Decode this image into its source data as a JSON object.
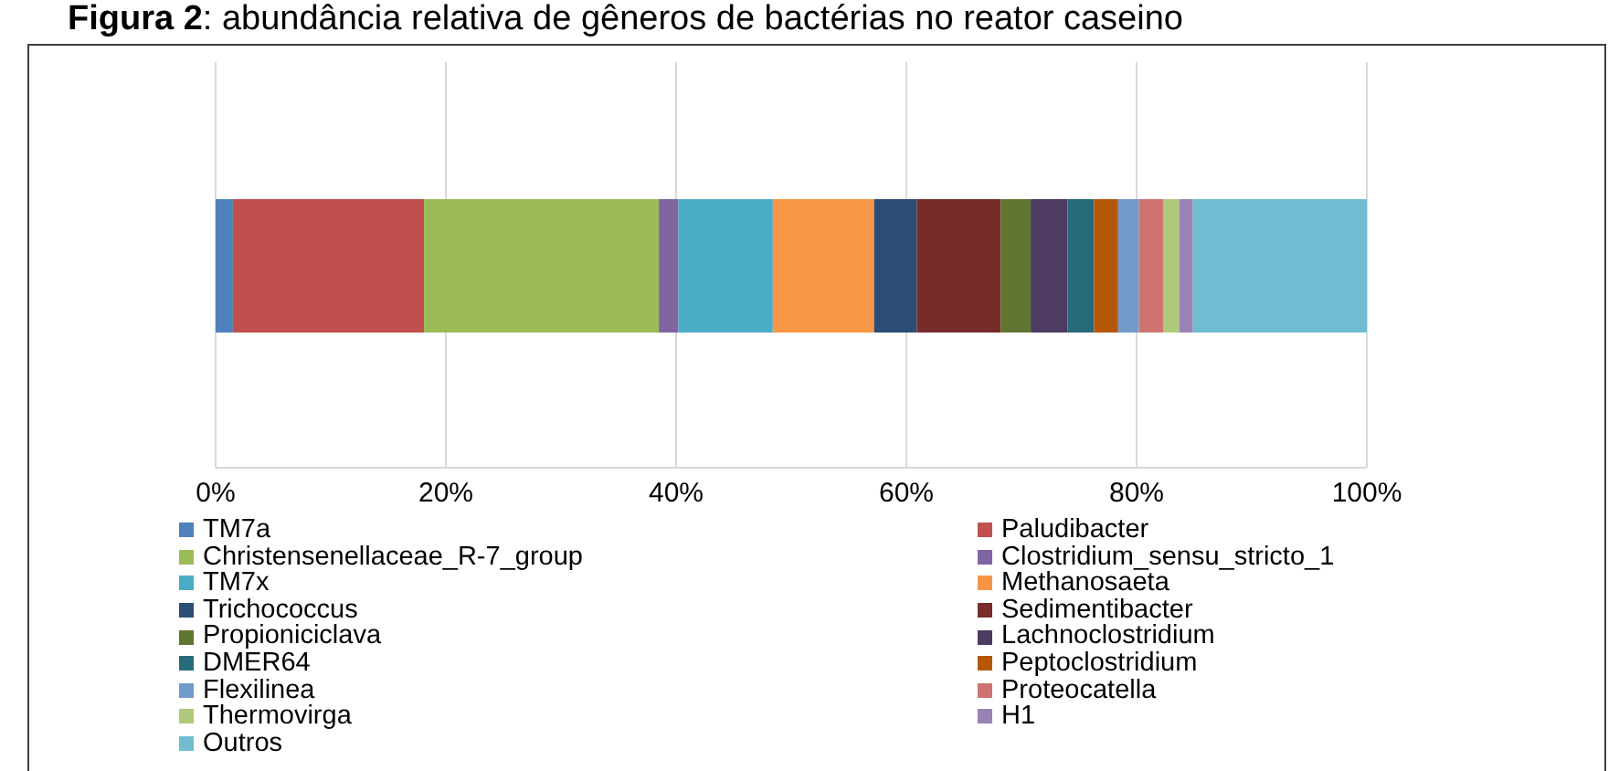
{
  "chart_data": {
    "type": "bar",
    "title": "Figura 2: abundância relativa de gêneros de bactérias no reator caseino",
    "orientation": "horizontal",
    "stacked": true,
    "categories": [
      null
    ],
    "series": [
      {
        "name": "TM7a",
        "color": "#4f81bd",
        "values": [
          1.5
        ]
      },
      {
        "name": "Paludibacter",
        "color": "#c0504d",
        "values": [
          16.6
        ]
      },
      {
        "name": "Christensenellaceae_R-7_group",
        "color": "#9bbb59",
        "values": [
          20.4
        ]
      },
      {
        "name": "Clostridium_sensu_stricto_1",
        "color": "#8064a2",
        "values": [
          1.7
        ]
      },
      {
        "name": "TM7x",
        "color": "#4bacc6",
        "values": [
          8.2
        ]
      },
      {
        "name": "Methanosaeta",
        "color": "#f79646",
        "values": [
          8.8
        ]
      },
      {
        "name": "Trichococcus",
        "color": "#2c4d75",
        "values": [
          3.7
        ]
      },
      {
        "name": "Sedimentibacter",
        "color": "#772c2a",
        "values": [
          7.3
        ]
      },
      {
        "name": "Propioniciclava",
        "color": "#5f7530",
        "values": [
          2.6
        ]
      },
      {
        "name": "Lachnoclostridium",
        "color": "#4d3b62",
        "values": [
          3.2
        ]
      },
      {
        "name": "DMER64",
        "color": "#276a7c",
        "values": [
          2.3
        ]
      },
      {
        "name": "Peptoclostridium",
        "color": "#b65708",
        "values": [
          2.1
        ]
      },
      {
        "name": "Flexilinea",
        "color": "#729aca",
        "values": [
          1.8
        ]
      },
      {
        "name": "Proteocatella",
        "color": "#cd7371",
        "values": [
          2.1
        ]
      },
      {
        "name": "Thermovirga",
        "color": "#afc97a",
        "values": [
          1.4
        ]
      },
      {
        "name": "H1",
        "color": "#9983b5",
        "values": [
          1.2
        ]
      },
      {
        "name": "Outros",
        "color": "#70bcd1",
        "values": [
          15.1
        ]
      }
    ],
    "xlim": [
      0,
      100
    ],
    "xticks": [
      {
        "value": 0,
        "label": "0%"
      },
      {
        "value": 20,
        "label": "20%"
      },
      {
        "value": 40,
        "label": "40%"
      },
      {
        "value": 60,
        "label": "60%"
      },
      {
        "value": 80,
        "label": "80%"
      },
      {
        "value": 100,
        "label": "100%"
      }
    ],
    "grid": "x",
    "legend": "bottom",
    "tick_labels": "x"
  }
}
